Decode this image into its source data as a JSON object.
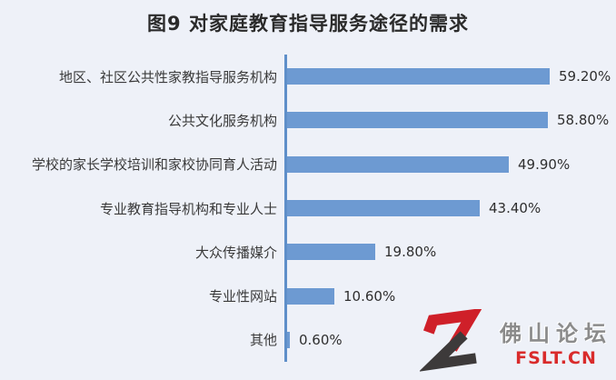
{
  "title": "图9 对家庭教育指导服务途径的需求",
  "chart_data": {
    "type": "bar",
    "orientation": "horizontal",
    "title": "图9 对家庭教育指导服务途径的需求",
    "categories": [
      "地区、社区公共性家教指导服务机构",
      "公共文化服务机构",
      "学校的家长学校培训和家校协同育人活动",
      "专业教育指导机构和专业人士",
      "大众传播媒介",
      "专业性网站",
      "其他"
    ],
    "values": [
      59.2,
      58.8,
      49.9,
      43.4,
      19.8,
      10.6,
      0.6
    ],
    "value_labels": [
      "59.20%",
      "58.80%",
      "49.90%",
      "43.40%",
      "19.80%",
      "10.60%",
      "0.60%"
    ],
    "xlabel": "",
    "ylabel": "",
    "xlim": [
      0,
      62
    ],
    "grid": false,
    "legend": false,
    "bar_color": "#6d9ad2",
    "axis_color": "#5f8fc9",
    "background_color": "#eef1f8"
  },
  "watermark": {
    "logo_icon": "foshan-forum-logo",
    "site_name": "佛山论坛",
    "site_url": "FSLT.CN",
    "logo_red": "#cf2029",
    "logo_dark": "#3d3a3a",
    "name_color": "#8b8b8b",
    "url_color": "#d92b2b"
  }
}
